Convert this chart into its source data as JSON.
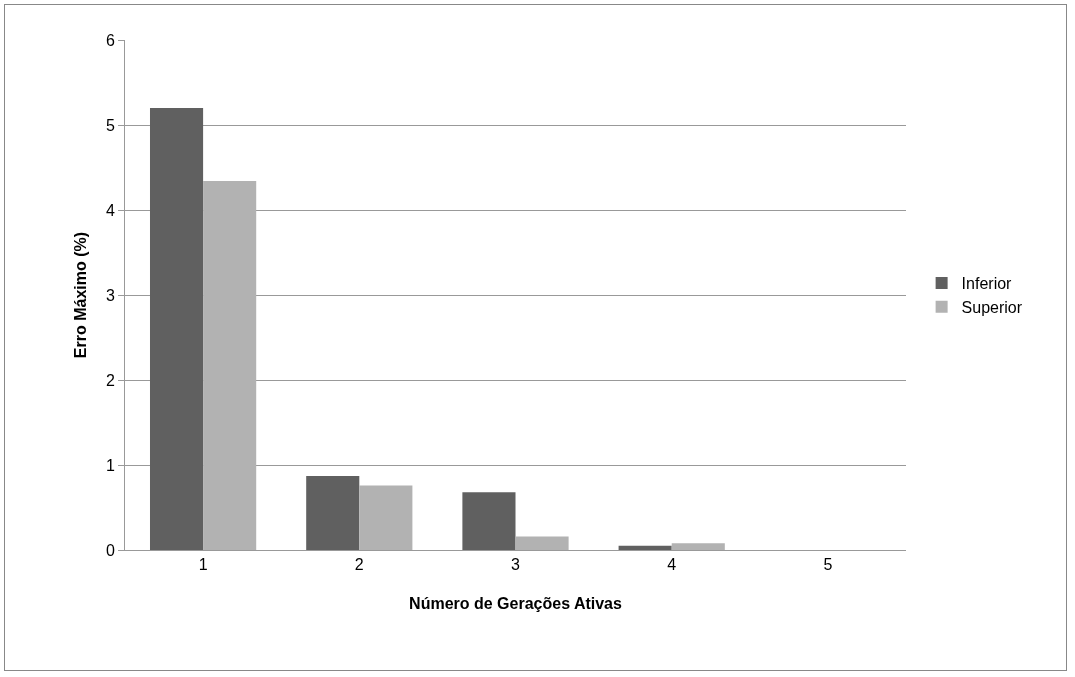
{
  "chart_data": {
    "type": "bar",
    "xlabel": "Número de Gerações Ativas",
    "ylabel": "Erro Máximo (%)",
    "categories": [
      "1",
      "2",
      "3",
      "4",
      "5"
    ],
    "series": [
      {
        "name": "Inferior",
        "color": "#606060",
        "values": [
          5.2,
          0.87,
          0.68,
          0.05,
          0
        ]
      },
      {
        "name": "Superior",
        "color": "#b2b2b2",
        "values": [
          4.34,
          0.76,
          0.16,
          0.08,
          0
        ]
      }
    ],
    "ylim": [
      0,
      6
    ],
    "yticks": [
      0,
      1,
      2,
      3,
      4,
      5,
      6
    ],
    "grid": "y",
    "legend": "right"
  }
}
